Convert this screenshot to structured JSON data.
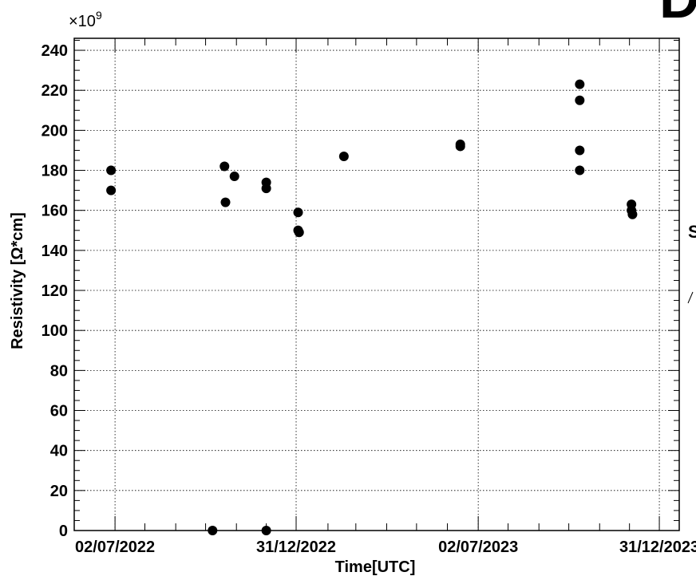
{
  "chart_data": {
    "type": "scatter",
    "title": "",
    "xlabel": "Time[UTC]",
    "ylabel": "Resistivity [Ω*cm]",
    "y_multiplier_label": "×10",
    "y_multiplier_exponent": "9",
    "ylim": [
      0,
      246
    ],
    "xlim": [
      "2022-05-22",
      "2024-01-20"
    ],
    "grid": true,
    "y_ticks": [
      0,
      20,
      40,
      60,
      80,
      100,
      120,
      140,
      160,
      180,
      200,
      220,
      240
    ],
    "x_ticks": [
      {
        "date": "2022-07-02",
        "label": "02/07/2022"
      },
      {
        "date": "2022-12-31",
        "label": "31/12/2022"
      },
      {
        "date": "2023-07-02",
        "label": "02/07/2023"
      },
      {
        "date": "2023-12-31",
        "label": "31/12/2023"
      }
    ],
    "x_minor_ticks": [
      "2022-08-01",
      "2022-09-01",
      "2022-10-01",
      "2022-11-01",
      "2022-12-01",
      "2023-02-01",
      "2023-03-01",
      "2023-04-01",
      "2023-05-01",
      "2023-06-01",
      "2023-08-01",
      "2023-09-01",
      "2023-10-01",
      "2023-11-01",
      "2023-12-01"
    ],
    "series": [
      {
        "values": [
          {
            "x": "2022-06-28",
            "y": 180
          },
          {
            "x": "2022-06-28",
            "y": 170
          },
          {
            "x": "2022-10-08",
            "y": 0
          },
          {
            "x": "2022-10-20",
            "y": 182
          },
          {
            "x": "2022-10-21",
            "y": 164
          },
          {
            "x": "2022-10-30",
            "y": 177
          },
          {
            "x": "2022-12-01",
            "y": 174
          },
          {
            "x": "2022-12-01",
            "y": 171
          },
          {
            "x": "2022-12-01",
            "y": 0
          },
          {
            "x": "2023-01-02",
            "y": 159
          },
          {
            "x": "2023-01-02",
            "y": 150
          },
          {
            "x": "2023-01-03",
            "y": 149
          },
          {
            "x": "2023-02-17",
            "y": 187
          },
          {
            "x": "2023-06-14",
            "y": 193
          },
          {
            "x": "2023-06-14",
            "y": 192
          },
          {
            "x": "2023-10-12",
            "y": 223
          },
          {
            "x": "2023-10-12",
            "y": 215
          },
          {
            "x": "2023-10-12",
            "y": 190
          },
          {
            "x": "2023-10-12",
            "y": 180
          },
          {
            "x": "2023-12-03",
            "y": 163
          },
          {
            "x": "2023-12-03",
            "y": 160
          },
          {
            "x": "2023-12-04",
            "y": 158
          }
        ]
      }
    ]
  },
  "edge_fragments": {
    "top_right": "D",
    "right_side": "S"
  }
}
